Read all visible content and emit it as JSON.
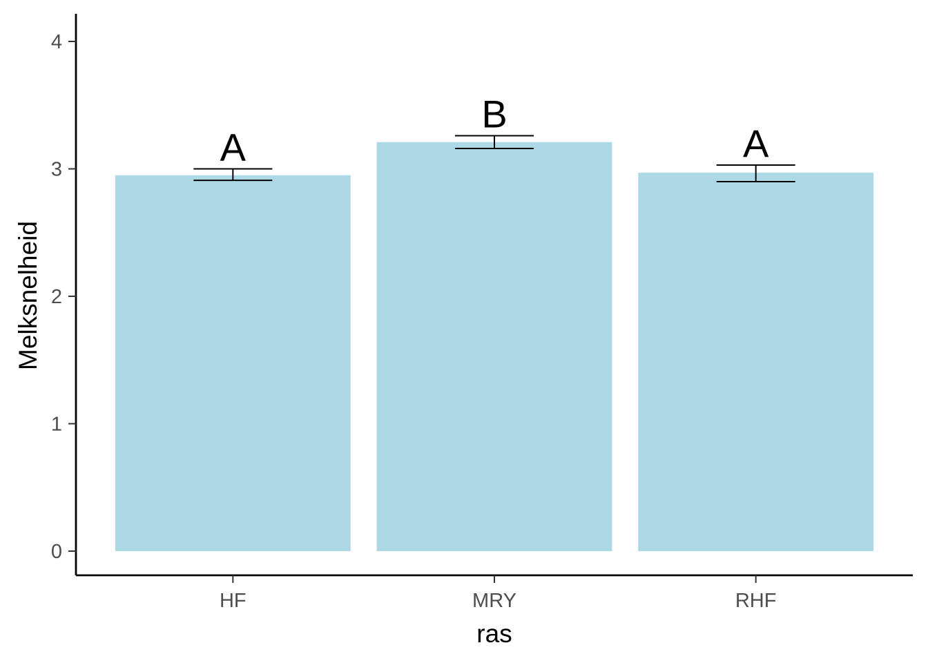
{
  "chart_data": {
    "type": "bar",
    "title": "",
    "xlabel": "ras",
    "ylabel": "Melksnelheid",
    "categories": [
      "HF",
      "MRY",
      "RHF"
    ],
    "values": [
      2.95,
      3.21,
      2.97
    ],
    "error_low": [
      2.91,
      3.16,
      2.9
    ],
    "error_high": [
      3.0,
      3.26,
      3.03
    ],
    "significance_labels": [
      "A",
      "B",
      "A"
    ],
    "ylim": [
      0,
      4.2
    ],
    "yticks": [
      0,
      1,
      2,
      3,
      4
    ],
    "grid": false,
    "legend": "none",
    "bar_color": "#ADD8E6",
    "axis_color": "#000000"
  }
}
